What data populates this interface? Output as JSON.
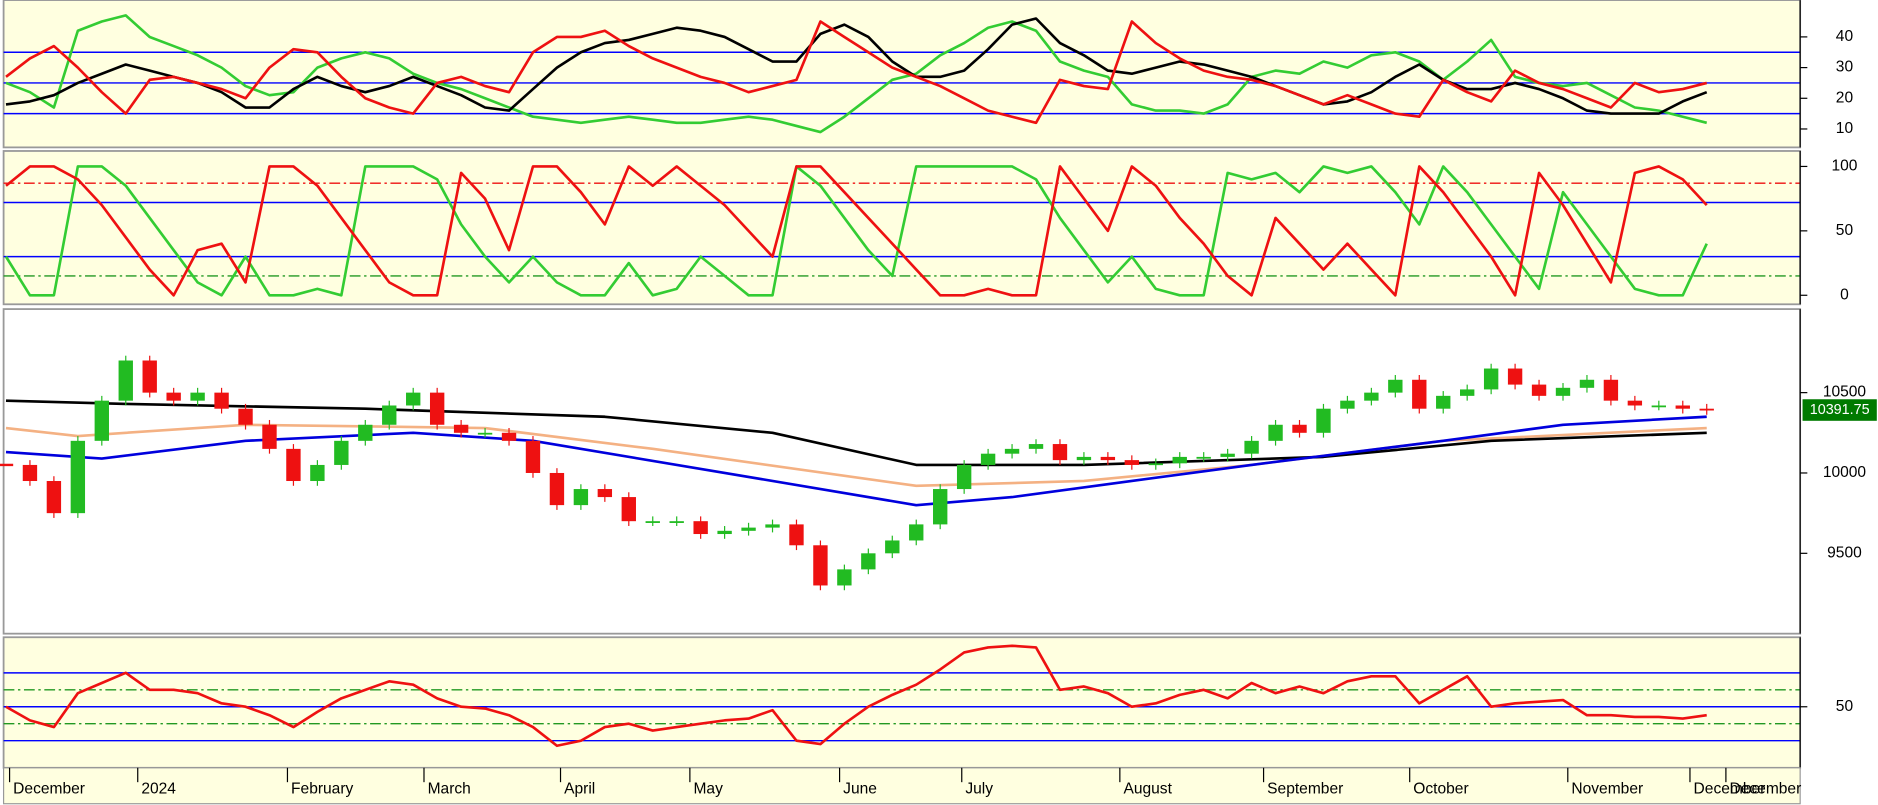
{
  "chart_data": [
    {
      "type": "line",
      "xlim": [
        0,
        75
      ],
      "ylim": [
        4,
        52
      ],
      "yticks": [
        10,
        20,
        30,
        40
      ],
      "hlines": [
        {
          "value": 15,
          "color": "#0000ff",
          "dash": "solid"
        },
        {
          "value": 25,
          "color": "#0000ff",
          "dash": "solid"
        },
        {
          "value": 35,
          "color": "#0000ff",
          "dash": "solid"
        }
      ],
      "series": [
        {
          "color": "#33cc33",
          "values": [
            25,
            22,
            17,
            42,
            45,
            47,
            40,
            37,
            34,
            30,
            24,
            21,
            22,
            30,
            33,
            35,
            33,
            28,
            25,
            23,
            20,
            17,
            14,
            13,
            12,
            13,
            14,
            13,
            12,
            12,
            13,
            14,
            13,
            11,
            9,
            14,
            20,
            26,
            28,
            34,
            38,
            43,
            45,
            42,
            32,
            29,
            27,
            18,
            16,
            16,
            15,
            18,
            27,
            29,
            28,
            32,
            30,
            34,
            35,
            32,
            26,
            32,
            39,
            27,
            25,
            24,
            25,
            21,
            17,
            16,
            14,
            12
          ]
        },
        {
          "color": "#000000",
          "values": [
            18,
            19,
            21,
            25,
            28,
            31,
            29,
            27,
            25,
            22,
            17,
            17,
            23,
            27,
            24,
            22,
            24,
            27,
            24,
            21,
            17,
            16,
            23,
            30,
            35,
            38,
            39,
            41,
            43,
            42,
            40,
            36,
            32,
            32,
            41,
            44,
            40,
            32,
            27,
            27,
            29,
            36,
            44,
            46,
            38,
            34,
            29,
            28,
            30,
            32,
            31,
            29,
            27,
            24,
            21,
            18,
            19,
            22,
            27,
            31,
            26,
            23,
            23,
            25,
            23,
            20,
            16,
            15,
            15,
            15,
            19,
            22
          ]
        },
        {
          "color": "#ee1111",
          "values": [
            27,
            33,
            37,
            30,
            22,
            15,
            26,
            27,
            25,
            23,
            20,
            30,
            36,
            35,
            27,
            20,
            17,
            15,
            25,
            27,
            24,
            22,
            35,
            40,
            40,
            42,
            37,
            33,
            30,
            27,
            25,
            22,
            24,
            26,
            45,
            40,
            35,
            30,
            27,
            24,
            20,
            16,
            14,
            12,
            26,
            24,
            23,
            45,
            38,
            33,
            29,
            27,
            26,
            24,
            21,
            18,
            21,
            18,
            15,
            14,
            26,
            22,
            19,
            29,
            25,
            23,
            20,
            17,
            25,
            22,
            23,
            25
          ]
        }
      ]
    },
    {
      "type": "line",
      "xlim": [
        0,
        75
      ],
      "ylim": [
        -7,
        112
      ],
      "yticks": [
        0,
        50,
        100
      ],
      "hlines": [
        {
          "value": 87,
          "color": "#ee1111",
          "dash": "dashdot"
        },
        {
          "value": 72,
          "color": "#0000ff",
          "dash": "solid"
        },
        {
          "value": 30,
          "color": "#0000ff",
          "dash": "solid"
        },
        {
          "value": 15,
          "color": "#229922",
          "dash": "dashdot"
        }
      ],
      "series": [
        {
          "color": "#33cc33",
          "values": [
            30,
            0,
            0,
            100,
            100,
            85,
            60,
            35,
            10,
            0,
            30,
            0,
            0,
            5,
            0,
            100,
            100,
            100,
            90,
            55,
            30,
            10,
            30,
            10,
            0,
            0,
            25,
            0,
            5,
            30,
            15,
            0,
            0,
            100,
            85,
            60,
            35,
            15,
            100,
            100,
            100,
            100,
            100,
            90,
            60,
            35,
            10,
            30,
            5,
            0,
            0,
            95,
            90,
            95,
            80,
            100,
            95,
            100,
            80,
            55,
            100,
            80,
            55,
            30,
            5,
            80,
            55,
            30,
            5,
            0,
            0,
            40
          ]
        },
        {
          "color": "#ee1111",
          "values": [
            85,
            100,
            100,
            90,
            70,
            45,
            20,
            0,
            35,
            40,
            10,
            100,
            100,
            85,
            60,
            35,
            10,
            0,
            0,
            95,
            75,
            35,
            100,
            100,
            80,
            55,
            100,
            85,
            100,
            85,
            70,
            50,
            30,
            100,
            100,
            80,
            60,
            40,
            20,
            0,
            0,
            5,
            0,
            0,
            100,
            75,
            50,
            100,
            85,
            60,
            40,
            15,
            0,
            60,
            40,
            20,
            40,
            20,
            0,
            100,
            80,
            55,
            30,
            0,
            95,
            70,
            40,
            10,
            95,
            100,
            90,
            70
          ]
        }
      ]
    },
    {
      "type": "candlestick",
      "xlim": [
        0,
        75
      ],
      "ylim": [
        9000,
        11020
      ],
      "yticks": [
        9500,
        10000,
        10500
      ],
      "up_color": "#22bb22",
      "down_color": "#ee1111",
      "close": [
        10050,
        9950,
        9750,
        10200,
        10450,
        10700,
        10500,
        10450,
        10500,
        10400,
        10300,
        10150,
        9950,
        10050,
        10200,
        10300,
        10420,
        10500,
        10300,
        10250,
        10250,
        10200,
        10000,
        9800,
        9900,
        9850,
        9700,
        9700,
        9700,
        9620,
        9640,
        9660,
        9680,
        9550,
        9300,
        9400,
        9500,
        9580,
        9680,
        9900,
        10050,
        10120,
        10150,
        10180,
        10080,
        10100,
        10080,
        10050,
        10060,
        10100,
        10100,
        10120,
        10200,
        10300,
        10250,
        10400,
        10450,
        10500,
        10580,
        10400,
        10480,
        10520,
        10650,
        10550,
        10480,
        10530,
        10580,
        10450,
        10420,
        10420,
        10400,
        10392
      ],
      "series": [
        {
          "color": "#f4b183",
          "x": [
            0,
            3,
            10,
            20,
            27,
            38,
            45,
            52,
            60,
            71
          ],
          "values": [
            10280,
            10230,
            10300,
            10280,
            10150,
            9920,
            9950,
            10050,
            10200,
            10280
          ]
        },
        {
          "color": "#000000",
          "x": [
            0,
            5,
            15,
            25,
            32,
            38,
            45,
            55,
            62,
            71
          ],
          "values": [
            10450,
            10430,
            10400,
            10350,
            10250,
            10050,
            10050,
            10100,
            10200,
            10250
          ]
        },
        {
          "color": "#0000dd",
          "x": [
            0,
            4,
            10,
            17,
            22,
            30,
            38,
            42,
            47,
            52,
            60,
            65,
            71
          ],
          "values": [
            10130,
            10090,
            10200,
            10250,
            10200,
            10000,
            9800,
            9850,
            9950,
            10050,
            10200,
            10300,
            10350
          ]
        }
      ],
      "last_price": 10391.75,
      "last_price_color": "#007a00"
    },
    {
      "type": "line",
      "xlim": [
        0,
        75
      ],
      "ylim": [
        14,
        91
      ],
      "yticks": [
        50
      ],
      "hlines": [
        {
          "value": 70,
          "color": "#0000ff",
          "dash": "solid"
        },
        {
          "value": 50,
          "color": "#0000ff",
          "dash": "solid"
        },
        {
          "value": 30,
          "color": "#0000ff",
          "dash": "solid"
        },
        {
          "value": 60,
          "color": "#229922",
          "dash": "dashdot"
        },
        {
          "value": 40,
          "color": "#229922",
          "dash": "dashdot"
        }
      ],
      "series": [
        {
          "color": "#ee1111",
          "values": [
            50,
            42,
            38,
            58,
            64,
            70,
            60,
            60,
            58,
            52,
            50,
            45,
            38,
            47,
            55,
            60,
            65,
            63,
            55,
            50,
            49,
            45,
            38,
            27,
            30,
            38,
            40,
            36,
            38,
            40,
            42,
            43,
            48,
            30,
            28,
            40,
            50,
            57,
            63,
            72,
            82,
            85,
            86,
            85,
            60,
            62,
            58,
            50,
            52,
            57,
            60,
            55,
            64,
            58,
            62,
            58,
            65,
            68,
            68,
            52,
            60,
            68,
            50,
            52,
            53,
            54,
            45,
            45,
            44,
            44,
            43,
            45
          ]
        }
      ],
      "xticks": [
        {
          "value": 0.15,
          "label": "December"
        },
        {
          "value": 5.5,
          "label": "2024"
        },
        {
          "value": 11.75,
          "label": "February"
        },
        {
          "value": 17.45,
          "label": "March"
        },
        {
          "value": 23.15,
          "label": "April"
        },
        {
          "value": 28.55,
          "label": "May"
        },
        {
          "value": 34.8,
          "label": "June"
        },
        {
          "value": 39.9,
          "label": "July"
        },
        {
          "value": 46.5,
          "label": "August"
        },
        {
          "value": 52.5,
          "label": "September"
        },
        {
          "value": 58.6,
          "label": "October"
        },
        {
          "value": 65.2,
          "label": "November"
        },
        {
          "value": 70.3,
          "label": "December"
        },
        {
          "value": 71.8,
          "label": "December"
        }
      ]
    }
  ]
}
